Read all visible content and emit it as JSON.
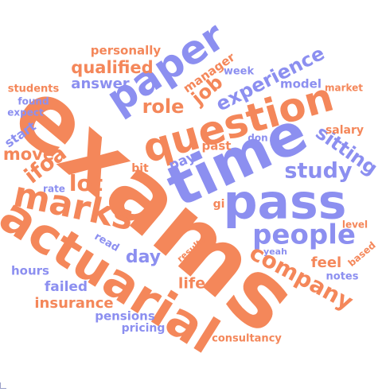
{
  "colors": {
    "orange": "#f4875a",
    "blue": "#8c8ff0"
  },
  "words": [
    {
      "id": "exams",
      "text": "exams",
      "color": "orange"
    },
    {
      "id": "time",
      "text": "time",
      "color": "blue"
    },
    {
      "id": "actuarial",
      "text": "actuarial",
      "color": "orange"
    },
    {
      "id": "question",
      "text": "question",
      "color": "orange"
    },
    {
      "id": "paper",
      "text": "paper",
      "color": "blue"
    },
    {
      "id": "pass",
      "text": "pass",
      "color": "blue"
    },
    {
      "id": "marks",
      "text": "marks",
      "color": "orange"
    },
    {
      "id": "people",
      "text": "people",
      "color": "blue"
    },
    {
      "id": "company",
      "text": "company",
      "color": "orange"
    },
    {
      "id": "study",
      "text": "study",
      "color": "blue"
    },
    {
      "id": "experience",
      "text": "experience",
      "color": "blue"
    },
    {
      "id": "sitting",
      "text": "sitting",
      "color": "blue"
    },
    {
      "id": "ifoa",
      "text": "ifoa",
      "color": "orange"
    },
    {
      "id": "lot",
      "text": "lot",
      "color": "orange"
    },
    {
      "id": "job",
      "text": "job",
      "color": "orange"
    },
    {
      "id": "role",
      "text": "role",
      "color": "orange"
    },
    {
      "id": "move",
      "text": "move",
      "color": "orange"
    },
    {
      "id": "day",
      "text": "day",
      "color": "blue"
    },
    {
      "id": "insurance",
      "text": "insurance",
      "color": "orange"
    },
    {
      "id": "qualified",
      "text": "qualified",
      "color": "orange"
    },
    {
      "id": "answer",
      "text": "answer",
      "color": "blue"
    },
    {
      "id": "personally",
      "text": "personally",
      "color": "orange"
    },
    {
      "id": "manager",
      "text": "manager",
      "color": "orange"
    },
    {
      "id": "week",
      "text": "week",
      "color": "blue"
    },
    {
      "id": "model",
      "text": "model",
      "color": "blue"
    },
    {
      "id": "market",
      "text": "market",
      "color": "orange"
    },
    {
      "id": "students",
      "text": "students",
      "color": "orange"
    },
    {
      "id": "found",
      "text": "found",
      "color": "blue"
    },
    {
      "id": "expect",
      "text": "expect",
      "color": "blue"
    },
    {
      "id": "start",
      "text": "start",
      "color": "blue"
    },
    {
      "id": "salary",
      "text": "salary",
      "color": "orange"
    },
    {
      "id": "don",
      "text": "don",
      "color": "blue"
    },
    {
      "id": "past",
      "text": "past",
      "color": "orange"
    },
    {
      "id": "pay",
      "text": "pay",
      "color": "blue"
    },
    {
      "id": "bit",
      "text": "bit",
      "color": "orange"
    },
    {
      "id": "rate",
      "text": "rate",
      "color": "blue"
    },
    {
      "id": "gi",
      "text": "gi",
      "color": "orange"
    },
    {
      "id": "level",
      "text": "level",
      "color": "orange"
    },
    {
      "id": "read",
      "text": "read",
      "color": "blue"
    },
    {
      "id": "results",
      "text": "results",
      "color": "orange"
    },
    {
      "id": "yeah",
      "text": "yeah",
      "color": "blue"
    },
    {
      "id": "based",
      "text": "based",
      "color": "orange"
    },
    {
      "id": "hours",
      "text": "hours",
      "color": "blue"
    },
    {
      "id": "feel",
      "text": "feel",
      "color": "orange"
    },
    {
      "id": "notes",
      "text": "notes",
      "color": "blue"
    },
    {
      "id": "life",
      "text": "life",
      "color": "orange"
    },
    {
      "id": "failed",
      "text": "failed",
      "color": "blue"
    },
    {
      "id": "pensions",
      "text": "pensions",
      "color": "blue"
    },
    {
      "id": "pricing",
      "text": "pricing",
      "color": "blue"
    },
    {
      "id": "consultancy",
      "text": "consultancy",
      "color": "orange"
    }
  ]
}
